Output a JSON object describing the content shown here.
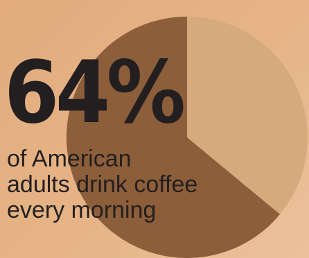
{
  "chart_data": {
    "type": "pie",
    "values": [
      64,
      36
    ],
    "colors": [
      "#8d5e3a",
      "#d5ab7d"
    ],
    "headline": "64%",
    "caption_lines": [
      "of American",
      "adults drink coffee",
      "every morning"
    ]
  }
}
